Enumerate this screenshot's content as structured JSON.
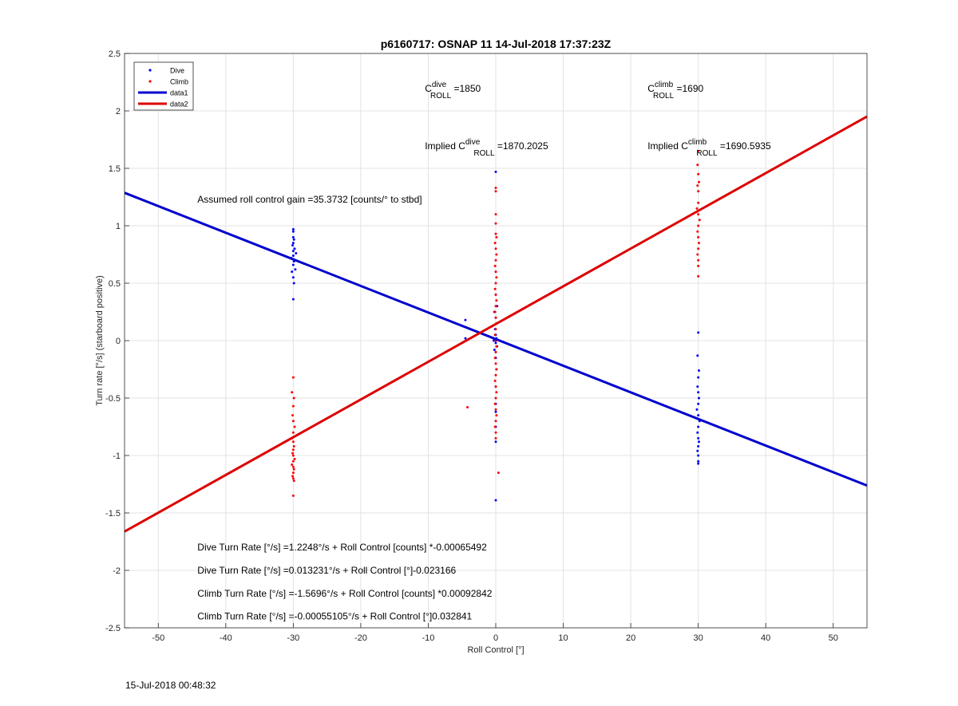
{
  "chart_data": {
    "type": "scatter",
    "title": "p6160717: OSNAP 11 14-Jul-2018 17:37:23Z",
    "xlabel": "Roll Control [°]",
    "ylabel": "Turn rate [°/s] (starboard positive)",
    "xlim": [
      -55,
      55
    ],
    "ylim": [
      -2.5,
      2.5
    ],
    "xticks": [
      -50,
      -40,
      -30,
      -20,
      -10,
      0,
      10,
      20,
      30,
      40,
      50
    ],
    "yticks": [
      -2.5,
      -2,
      -1.5,
      -1,
      -0.5,
      0,
      0.5,
      1,
      1.5,
      2,
      2.5
    ],
    "grid": true,
    "legend_position": "top-left",
    "legend": [
      "Dive",
      "Climb",
      "data1",
      "data2"
    ],
    "series": [
      {
        "name": "Dive",
        "kind": "points",
        "color": "#0000ff",
        "points": [
          [
            -30,
            0.97
          ],
          [
            -30,
            0.95
          ],
          [
            -30,
            0.9
          ],
          [
            -29.9,
            0.88
          ],
          [
            -30,
            0.85
          ],
          [
            -30.1,
            0.83
          ],
          [
            -29.8,
            0.8
          ],
          [
            -30,
            0.78
          ],
          [
            -29.6,
            0.76
          ],
          [
            -30,
            0.74
          ],
          [
            -30.3,
            0.72
          ],
          [
            -29.9,
            0.69
          ],
          [
            -30,
            0.66
          ],
          [
            -29.7,
            0.62
          ],
          [
            -30.2,
            0.6
          ],
          [
            -30,
            0.55
          ],
          [
            -29.9,
            0.5
          ],
          [
            -30,
            0.36
          ],
          [
            -4.5,
            0.18
          ],
          [
            -4.5,
            0.02
          ],
          [
            0,
            1.47
          ],
          [
            0,
            0.6
          ],
          [
            0,
            0.4
          ],
          [
            0.2,
            0.3
          ],
          [
            -0.2,
            0.25
          ],
          [
            0,
            0.2
          ],
          [
            0.1,
            0.15
          ],
          [
            -0.1,
            0.1
          ],
          [
            0,
            0.05
          ],
          [
            0.1,
            0.02
          ],
          [
            -0.3,
            0.0
          ],
          [
            0,
            -0.02
          ],
          [
            0.2,
            -0.05
          ],
          [
            -0.2,
            -0.08
          ],
          [
            0,
            -0.1
          ],
          [
            0,
            -0.15
          ],
          [
            0.1,
            -0.25
          ],
          [
            0,
            -0.4
          ],
          [
            0,
            -0.55
          ],
          [
            0,
            -0.62
          ],
          [
            0,
            -0.75
          ],
          [
            0,
            -0.88
          ],
          [
            0,
            -1.39
          ],
          [
            30,
            0.07
          ],
          [
            29.9,
            -0.13
          ],
          [
            30.1,
            -0.26
          ],
          [
            30,
            -0.32
          ],
          [
            29.9,
            -0.4
          ],
          [
            30,
            -0.45
          ],
          [
            30.1,
            -0.5
          ],
          [
            30,
            -0.55
          ],
          [
            29.8,
            -0.6
          ],
          [
            30,
            -0.65
          ],
          [
            30.2,
            -0.7
          ],
          [
            30,
            -0.75
          ],
          [
            29.9,
            -0.8
          ],
          [
            30,
            -0.85
          ],
          [
            30.1,
            -0.88
          ],
          [
            30,
            -0.92
          ],
          [
            29.9,
            -0.96
          ],
          [
            30,
            -1.0
          ],
          [
            30,
            -1.05
          ],
          [
            30,
            -1.07
          ]
        ]
      },
      {
        "name": "Climb",
        "kind": "points",
        "color": "#ff0000",
        "points": [
          [
            -30,
            -0.32
          ],
          [
            -30.2,
            -0.45
          ],
          [
            -29.9,
            -0.5
          ],
          [
            -30,
            -0.57
          ],
          [
            -30.1,
            -0.65
          ],
          [
            -30,
            -0.7
          ],
          [
            -29.8,
            -0.75
          ],
          [
            -30,
            -0.8
          ],
          [
            -30.2,
            -0.85
          ],
          [
            -30,
            -0.88
          ],
          [
            -29.9,
            -0.92
          ],
          [
            -30,
            -0.95
          ],
          [
            -30.1,
            -0.98
          ],
          [
            -30,
            -1.0
          ],
          [
            -29.8,
            -1.03
          ],
          [
            -30,
            -1.05
          ],
          [
            -30.2,
            -1.08
          ],
          [
            -30,
            -1.1
          ],
          [
            -29.9,
            -1.12
          ],
          [
            -30,
            -1.15
          ],
          [
            -30.1,
            -1.18
          ],
          [
            -30,
            -1.2
          ],
          [
            -29.9,
            -1.22
          ],
          [
            -30,
            -1.35
          ],
          [
            -4.2,
            -0.58
          ],
          [
            0,
            1.33
          ],
          [
            0,
            1.3
          ],
          [
            0,
            1.1
          ],
          [
            0,
            1.02
          ],
          [
            0,
            0.93
          ],
          [
            0.1,
            0.9
          ],
          [
            -0.1,
            0.85
          ],
          [
            0,
            0.8
          ],
          [
            0.1,
            0.75
          ],
          [
            0,
            0.7
          ],
          [
            -0.1,
            0.65
          ],
          [
            0,
            0.6
          ],
          [
            0.1,
            0.55
          ],
          [
            0,
            0.5
          ],
          [
            -0.1,
            0.45
          ],
          [
            0,
            0.4
          ],
          [
            0.1,
            0.35
          ],
          [
            0,
            0.3
          ],
          [
            -0.1,
            0.25
          ],
          [
            0,
            0.2
          ],
          [
            0.1,
            0.15
          ],
          [
            0,
            0.1
          ],
          [
            -0.1,
            0.05
          ],
          [
            0,
            0.0
          ],
          [
            0.1,
            -0.05
          ],
          [
            0,
            -0.1
          ],
          [
            -0.1,
            -0.15
          ],
          [
            0,
            -0.2
          ],
          [
            0.1,
            -0.25
          ],
          [
            0,
            -0.3
          ],
          [
            -0.1,
            -0.35
          ],
          [
            0,
            -0.4
          ],
          [
            0.1,
            -0.45
          ],
          [
            0,
            -0.5
          ],
          [
            -0.1,
            -0.55
          ],
          [
            0,
            -0.6
          ],
          [
            0.1,
            -0.65
          ],
          [
            0,
            -0.7
          ],
          [
            -0.1,
            -0.75
          ],
          [
            0,
            -0.8
          ],
          [
            0,
            -0.85
          ],
          [
            0.4,
            -1.15
          ],
          [
            30,
            1.65
          ],
          [
            29.9,
            1.53
          ],
          [
            30,
            1.45
          ],
          [
            30.1,
            1.38
          ],
          [
            29.9,
            1.35
          ],
          [
            30,
            1.3
          ],
          [
            30,
            1.2
          ],
          [
            29.8,
            1.15
          ],
          [
            30,
            1.1
          ],
          [
            30.2,
            1.05
          ],
          [
            30,
            1.0
          ],
          [
            29.9,
            0.95
          ],
          [
            30,
            0.9
          ],
          [
            30.1,
            0.85
          ],
          [
            30,
            0.8
          ],
          [
            29.9,
            0.75
          ],
          [
            30,
            0.7
          ],
          [
            30,
            0.65
          ],
          [
            30,
            0.56
          ]
        ]
      },
      {
        "name": "data1",
        "kind": "line",
        "color": "#0000cd",
        "points": [
          [
            -55,
            1.287
          ],
          [
            55,
            -1.261
          ]
        ]
      },
      {
        "name": "data2",
        "kind": "line",
        "color": "#dd0000",
        "points": [
          [
            -55,
            -1.662
          ],
          [
            55,
            1.951
          ]
        ]
      }
    ],
    "annotations": [
      {
        "id": "cdive",
        "base": "C",
        "sup": "dive",
        "sub": "ROLL",
        "suffix": " =1850",
        "x": -10.5,
        "y": 2.2
      },
      {
        "id": "cclimb",
        "base": "C",
        "sup": "climb",
        "sub": "ROLL",
        "suffix": " =1690",
        "x": 22.5,
        "y": 2.2
      },
      {
        "id": "implied-cdive",
        "base": "Implied C",
        "sup": "dive",
        "sub": "ROLL",
        "suffix": " =1870.2025",
        "x": -10.5,
        "y": 1.7
      },
      {
        "id": "implied-cclimb",
        "base": "Implied C",
        "sup": "climb",
        "sub": "ROLL",
        "suffix": " =1690.5935",
        "x": 22.5,
        "y": 1.7
      }
    ],
    "text_annotations": [
      {
        "id": "gain",
        "text": "Assumed roll control gain =35.3732 [counts/° to stbd]",
        "x": -44.2,
        "y": 1.23
      },
      {
        "id": "dive-counts",
        "text": "Dive Turn Rate [°/s] =1.2248°/s + Roll Control [counts] *-0.00065492",
        "x": -44.2,
        "y": -1.8
      },
      {
        "id": "dive-deg",
        "text": "Dive Turn Rate [°/s] =0.013231°/s + Roll Control [°]-0.023166",
        "x": -44.2,
        "y": -2.0
      },
      {
        "id": "climb-counts",
        "text": "Climb Turn Rate [°/s] =-1.5696°/s + Roll Control [counts] *0.00092842",
        "x": -44.2,
        "y": -2.2
      },
      {
        "id": "climb-deg",
        "text": "Climb Turn Rate [°/s] =-0.00055105°/s + Roll Control [°]0.032841",
        "x": -44.2,
        "y": -2.4
      }
    ]
  },
  "footer": {
    "timestamp": "15-Jul-2018 00:48:32"
  }
}
